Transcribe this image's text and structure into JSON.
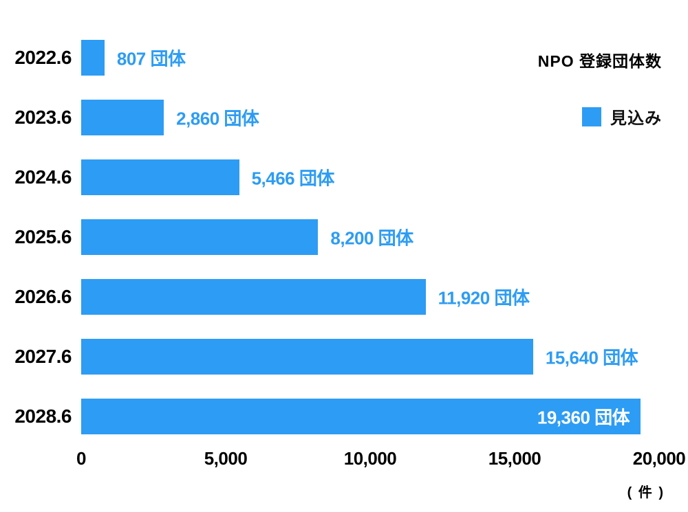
{
  "chart_data": {
    "type": "bar",
    "orientation": "horizontal",
    "title": "NPO 登録団体数",
    "legend": [
      {
        "label": "見込み",
        "color": "#2D9CF4"
      }
    ],
    "categories": [
      "2022.6",
      "2023.6",
      "2024.6",
      "2025.6",
      "2026.6",
      "2027.6",
      "2028.6"
    ],
    "values": [
      807,
      2860,
      5466,
      8200,
      11920,
      15640,
      19360
    ],
    "value_labels": [
      "807 団体",
      "2,860 団体",
      "5,466 団体",
      "8,200 団体",
      "11,920 団体",
      "15,640 団体",
      "19,360 団体"
    ],
    "xlim": [
      0,
      20000
    ],
    "x_ticks": [
      0,
      5000,
      10000,
      15000,
      20000
    ],
    "x_tick_labels": [
      "0",
      "5,000",
      "10,000",
      "15,000",
      "20,000"
    ],
    "unit_label": "( 件 )",
    "bar_color": "#2D9CF4",
    "label_color": "#2D9CF4",
    "grid": false,
    "legend_position": "top-right",
    "inside_label_threshold": 18000
  }
}
